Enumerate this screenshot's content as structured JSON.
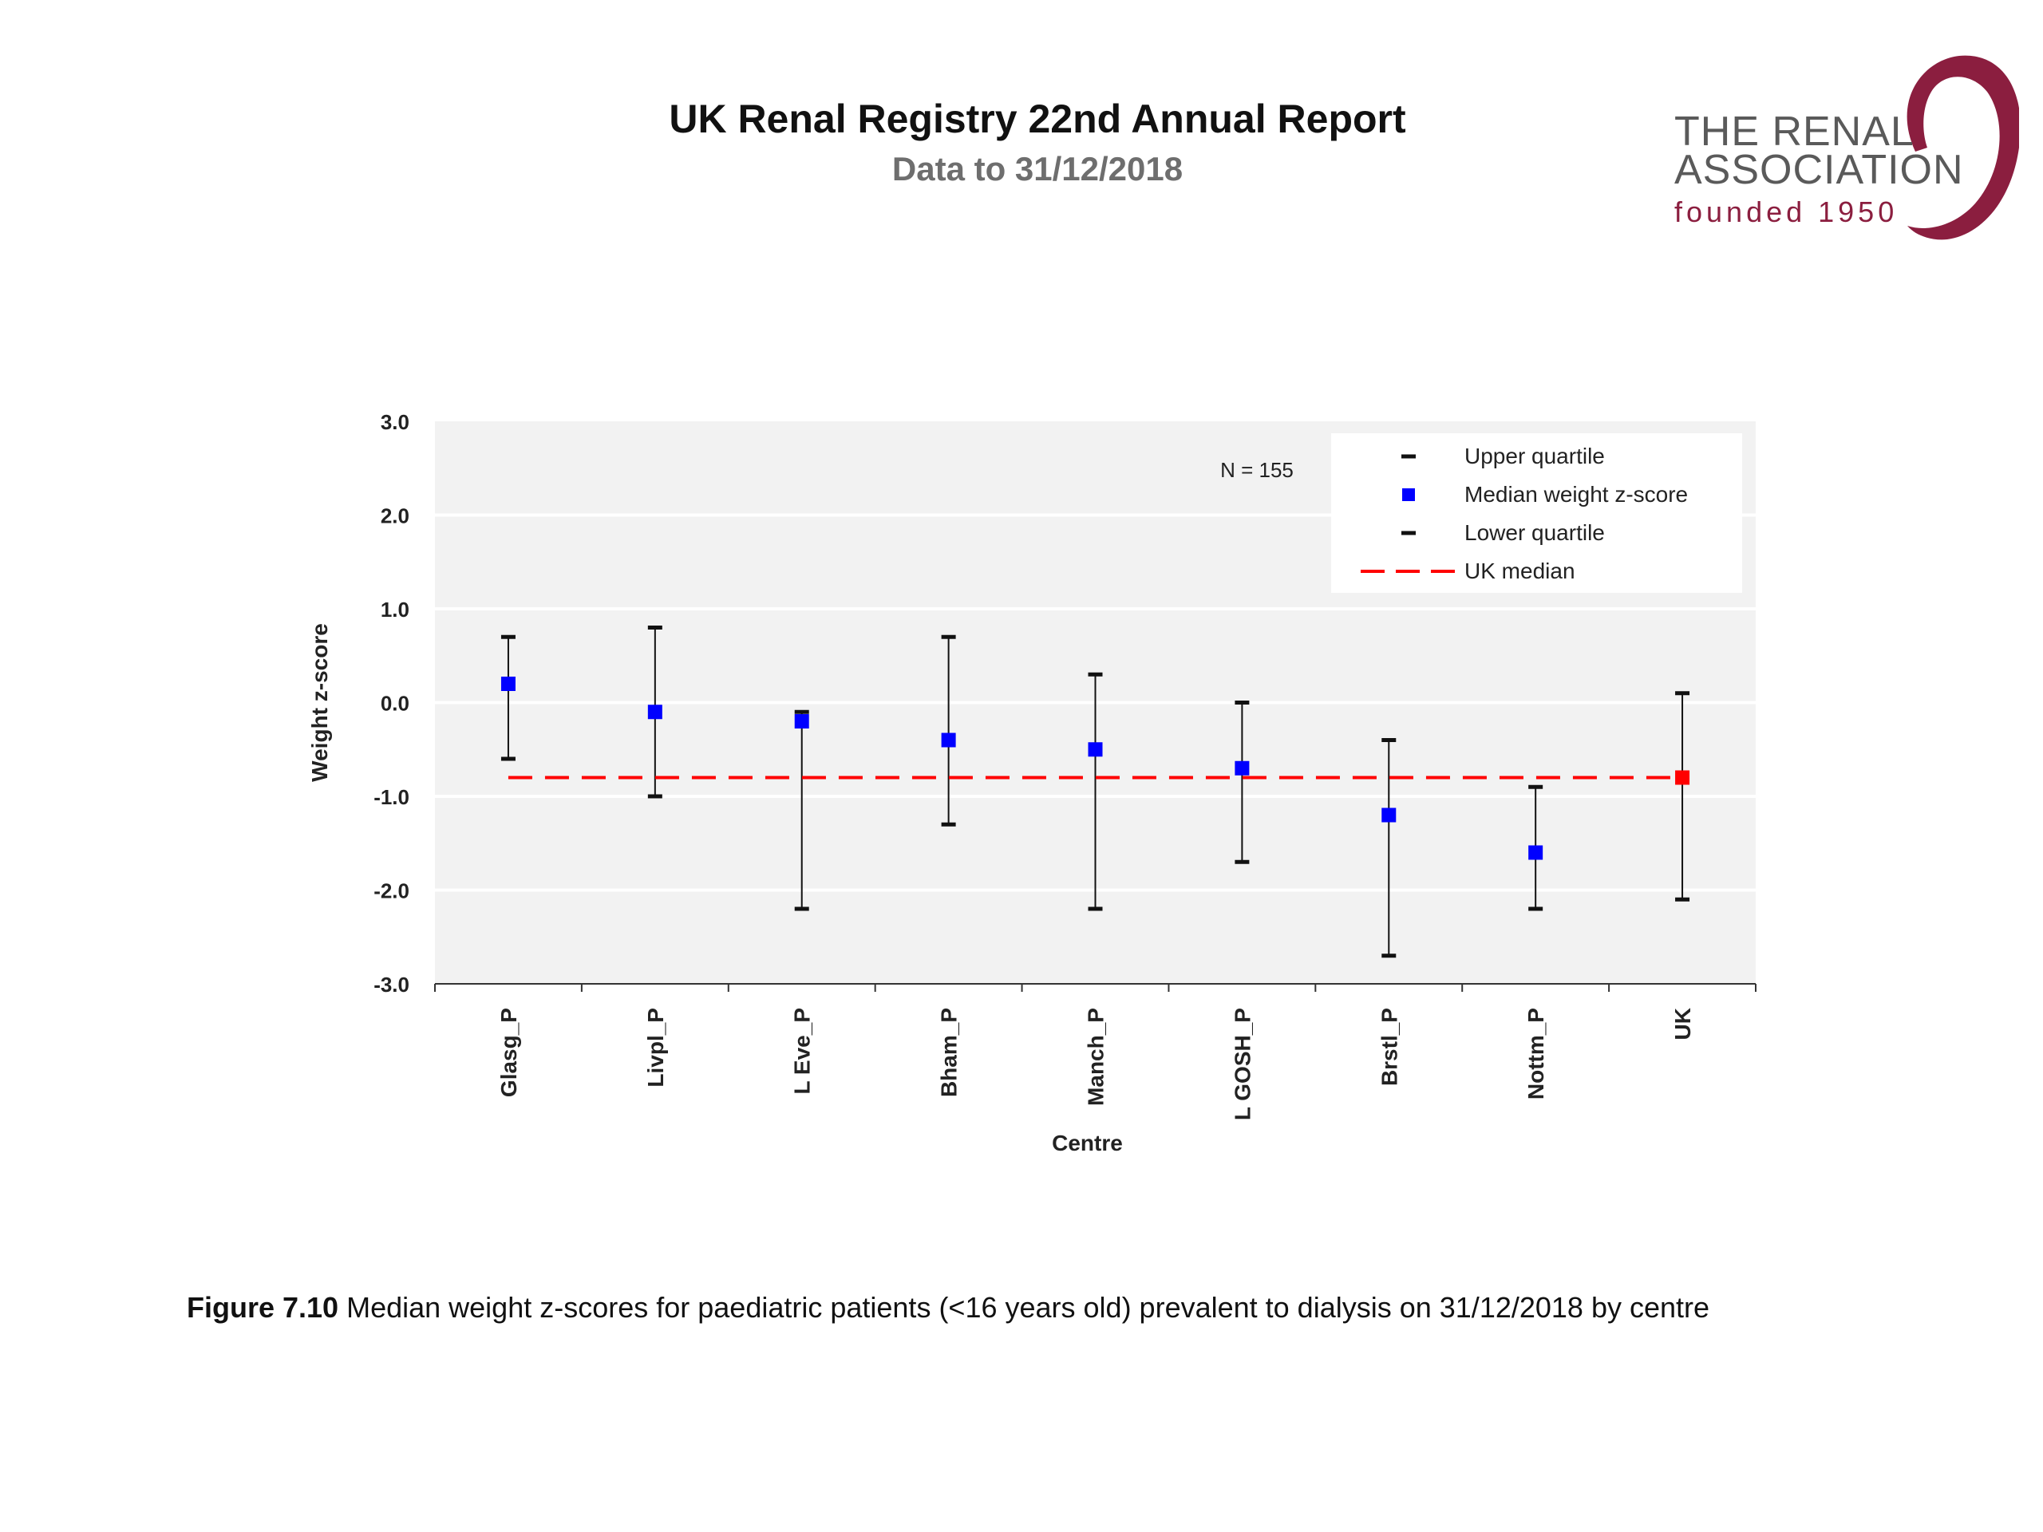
{
  "header": {
    "title": "UK Renal Registry 22nd Annual Report",
    "subtitle": "Data to 31/12/2018"
  },
  "logo": {
    "line1": "THE RENAL",
    "line2": "ASSOCIATION",
    "line3": "founded 1950",
    "color": "#8b1e3f"
  },
  "caption": {
    "label": "Figure 7.10",
    "text": " Median weight z-scores for paediatric patients (<16 years old) prevalent to dialysis on 31/12/2018 by centre"
  },
  "chart_data": {
    "type": "scatter",
    "title": "",
    "xlabel": "Centre",
    "ylabel": "Weight z-score",
    "ylim": [
      -3.0,
      3.0
    ],
    "yticks": [
      3.0,
      2.0,
      1.0,
      0.0,
      -1.0,
      -2.0,
      -3.0
    ],
    "ytick_labels": [
      "3.0",
      "2.0",
      "1.0",
      "0.0",
      "-1.0",
      "-2.0",
      "-3.0"
    ],
    "annotation": "N = 155",
    "grid": true,
    "legend_position": "top-right",
    "categories": [
      "Glasg_P",
      "Livpl_P",
      "L Eve_P",
      "Bham_P",
      "Manch_P",
      "L GOSH_P",
      "Brstl_P",
      "Nottm_P",
      "UK"
    ],
    "series": [
      {
        "name": "Upper quartile",
        "values": [
          0.7,
          0.8,
          -0.1,
          0.7,
          0.3,
          0.0,
          -0.4,
          -0.9,
          0.1
        ]
      },
      {
        "name": "Median weight z-score",
        "values": [
          0.2,
          -0.1,
          -0.2,
          -0.4,
          -0.5,
          -0.7,
          -1.2,
          -1.6,
          -0.8
        ]
      },
      {
        "name": "Lower quartile",
        "values": [
          -0.6,
          -1.0,
          -2.2,
          -1.3,
          -2.2,
          -1.7,
          -2.7,
          -2.2,
          -2.1
        ]
      },
      {
        "name": "UK median",
        "values": [
          -0.8
        ]
      }
    ],
    "colors": {
      "median": "#0000ff",
      "uk_median_point": "#ff0000",
      "uk_median_line": "#ff0000",
      "quartile": "#111111",
      "plot_bg": "#f2f2f2"
    }
  }
}
